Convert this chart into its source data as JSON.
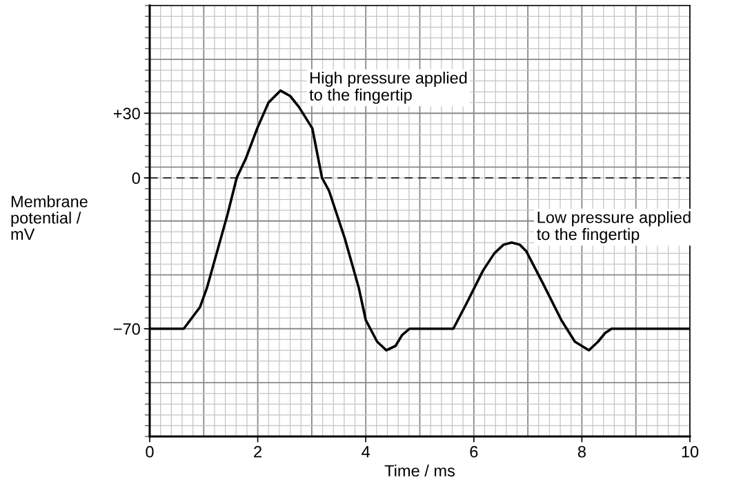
{
  "chart_data": {
    "type": "line",
    "xlabel": "Time / ms",
    "ylabel": "Membrane\npotential /\nmV",
    "xlim": [
      0,
      10
    ],
    "ylim": [
      -120,
      80
    ],
    "xticks": [
      0,
      2,
      4,
      6,
      8,
      10
    ],
    "yticks": [
      {
        "value": 30,
        "label": "+30"
      },
      0,
      {
        "value": -70,
        "label": "−70"
      }
    ],
    "grid": true,
    "marker": "none",
    "line_style": "solid",
    "ref_lines": [
      {
        "axis": "y",
        "value": 0,
        "color": "#333333",
        "line_style": "dashed"
      }
    ],
    "annotations": [
      {
        "text": "High pressure applied\nto the fingertip",
        "x": 2.42,
        "y": 40.5
      },
      {
        "text": "Low pressure applied\nto the fingertip",
        "x": 6.7,
        "y": -30
      }
    ],
    "series": [
      {
        "color": "#000000",
        "x": [
          0,
          0.63,
          0.93,
          1.06,
          1.44,
          1.61,
          1.78,
          1.99,
          2.2,
          2.42,
          2.6,
          2.76,
          3.01,
          3.19,
          3.32,
          3.61,
          3.87,
          4.0,
          4.21,
          4.38,
          4.55,
          4.67,
          4.81,
          5.62,
          5.87,
          6.17,
          6.38,
          6.55,
          6.7,
          6.85,
          6.97,
          7.28,
          7.62,
          7.87,
          8.13,
          8.3,
          8.43,
          8.55,
          10
        ],
        "values": [
          -70,
          -70,
          -60,
          -51,
          -17,
          0,
          9,
          23,
          35,
          40.5,
          38,
          33,
          23,
          0,
          -6,
          -28,
          -51,
          -66,
          -76,
          -80,
          -78,
          -73,
          -70,
          -70,
          -58,
          -43,
          -35,
          -31,
          -30,
          -31,
          -34,
          -49,
          -66,
          -76,
          -80,
          -76,
          -72,
          -70,
          -70
        ]
      }
    ]
  }
}
